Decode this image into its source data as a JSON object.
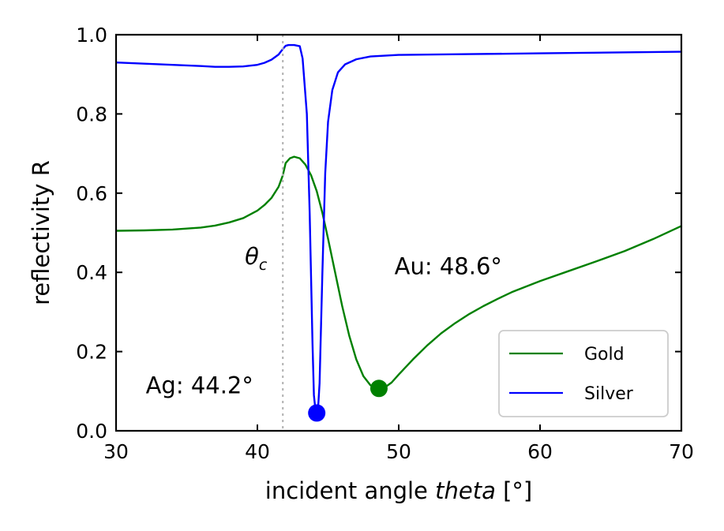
{
  "chart_data": {
    "type": "line",
    "xlabel_prefix": "incident angle ",
    "xlabel_italic": "theta",
    "xlabel_suffix": " [°]",
    "ylabel": "reflectivity R",
    "xlim": [
      30,
      70
    ],
    "ylim": [
      0.0,
      1.0
    ],
    "xticks": [
      30,
      40,
      50,
      60,
      70
    ],
    "yticks": [
      0.0,
      0.2,
      0.4,
      0.6,
      0.8,
      1.0
    ],
    "ytick_labels": [
      "0.0",
      "0.2",
      "0.4",
      "0.6",
      "0.8",
      "1.0"
    ],
    "xtick_labels": [
      "30",
      "40",
      "50",
      "60",
      "70"
    ],
    "grid": false,
    "legend_position": "lower-right",
    "critical_angle": 41.8,
    "critical_label": "θ",
    "critical_label_sub": "c",
    "series": [
      {
        "name": "Gold",
        "color": "#008000",
        "x": [
          30,
          32,
          34,
          36,
          37,
          38,
          39,
          40,
          40.5,
          41,
          41.5,
          41.8,
          42.0,
          42.3,
          42.6,
          43.0,
          43.4,
          43.8,
          44.2,
          44.6,
          45.0,
          45.5,
          46.0,
          46.5,
          47.0,
          47.5,
          48.0,
          48.6,
          49.0,
          49.5,
          50,
          51,
          52,
          53,
          54,
          55,
          56,
          57,
          58,
          60,
          62,
          64,
          66,
          68,
          70
        ],
        "y": [
          0.505,
          0.506,
          0.508,
          0.513,
          0.518,
          0.526,
          0.537,
          0.556,
          0.57,
          0.588,
          0.616,
          0.645,
          0.676,
          0.688,
          0.692,
          0.688,
          0.672,
          0.645,
          0.605,
          0.55,
          0.485,
          0.4,
          0.315,
          0.24,
          0.18,
          0.138,
          0.115,
          0.107,
          0.109,
          0.122,
          0.142,
          0.18,
          0.215,
          0.246,
          0.272,
          0.295,
          0.315,
          0.333,
          0.35,
          0.378,
          0.403,
          0.428,
          0.454,
          0.484,
          0.517
        ]
      },
      {
        "name": "Silver",
        "color": "#0000ff",
        "x": [
          30,
          32,
          34,
          36,
          37,
          38,
          39,
          40,
          40.5,
          41,
          41.5,
          41.8,
          42.0,
          42.2,
          42.6,
          43.0,
          43.2,
          43.5,
          43.7,
          43.9,
          44.0,
          44.1,
          44.2,
          44.3,
          44.4,
          44.6,
          44.8,
          45.0,
          45.3,
          45.7,
          46.2,
          47,
          48,
          50,
          55,
          60,
          65,
          70
        ],
        "y": [
          0.93,
          0.927,
          0.924,
          0.921,
          0.919,
          0.919,
          0.92,
          0.924,
          0.929,
          0.937,
          0.95,
          0.964,
          0.972,
          0.974,
          0.974,
          0.971,
          0.94,
          0.8,
          0.55,
          0.22,
          0.09,
          0.055,
          0.045,
          0.06,
          0.12,
          0.4,
          0.65,
          0.78,
          0.86,
          0.905,
          0.925,
          0.938,
          0.945,
          0.949,
          0.951,
          0.953,
          0.955,
          0.957
        ]
      }
    ],
    "minima": [
      {
        "series": "Silver",
        "x": 44.2,
        "y": 0.045,
        "label": "Ag: 44.2°",
        "color": "#0000ff"
      },
      {
        "series": "Gold",
        "x": 48.6,
        "y": 0.107,
        "label": "Au: 48.6°",
        "color": "#008000"
      }
    ]
  }
}
